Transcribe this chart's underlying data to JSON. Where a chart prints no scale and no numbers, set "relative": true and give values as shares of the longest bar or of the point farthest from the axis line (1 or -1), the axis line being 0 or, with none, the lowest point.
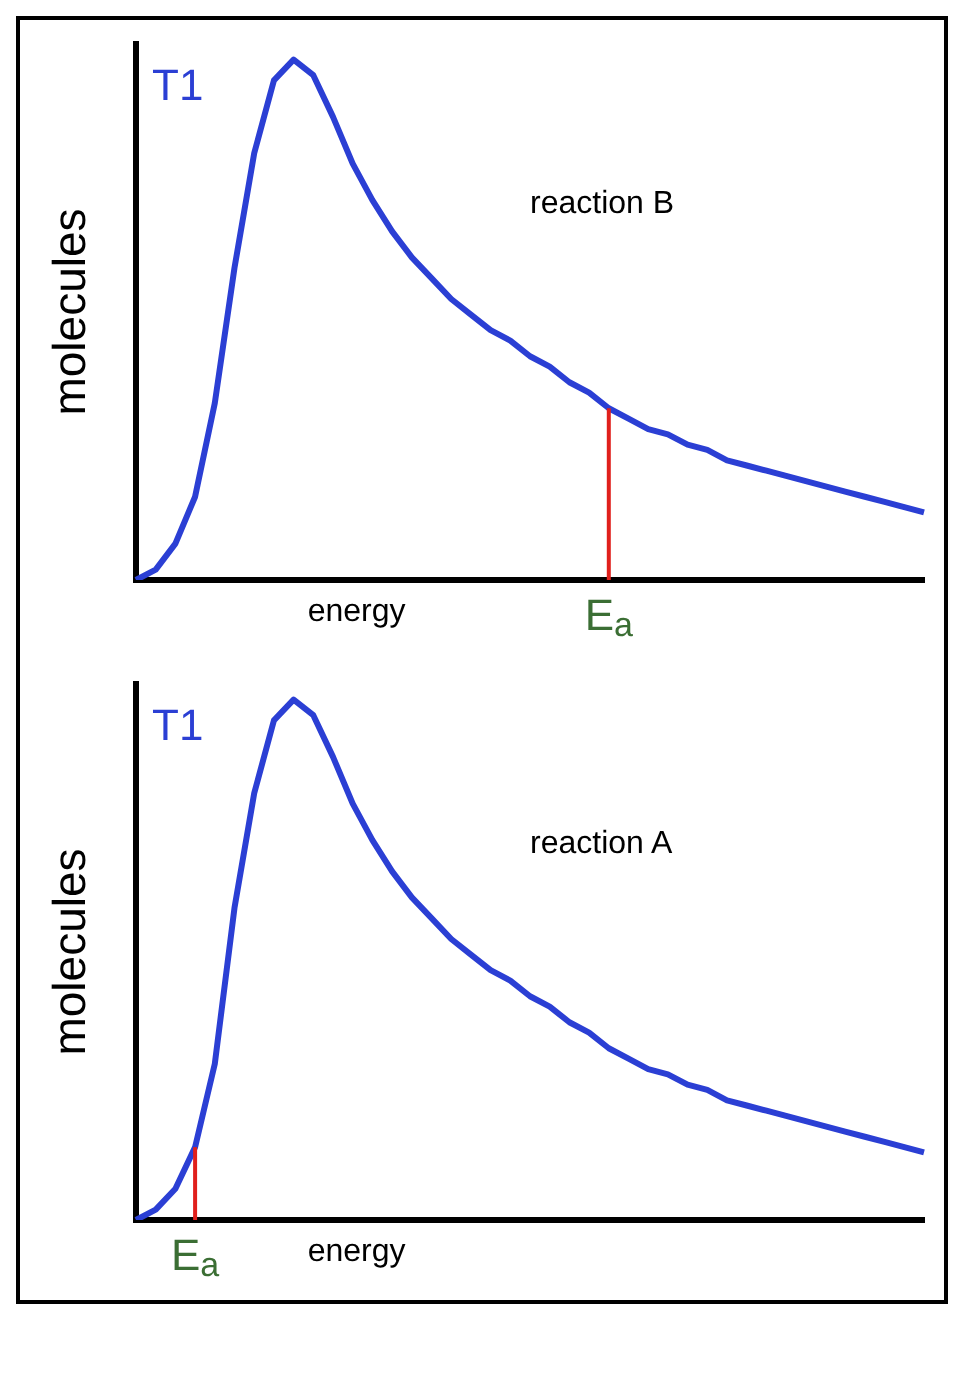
{
  "chart_data": [
    {
      "type": "line",
      "relative": true,
      "ylabel": "molecules",
      "xlabel": "energy",
      "annotations": [
        "T1",
        "reaction B",
        "E$_{a}$"
      ],
      "legend": false,
      "grid": false,
      "marker": "none",
      "categories": [
        null,
        null,
        null,
        null,
        null,
        null,
        null,
        null,
        null,
        null,
        null,
        null,
        null,
        null,
        null,
        null,
        null,
        null,
        null,
        null,
        null,
        null,
        null,
        null,
        null,
        null,
        null,
        null,
        null,
        null,
        null,
        null,
        null,
        null,
        null,
        null,
        null,
        null,
        null,
        null,
        null
      ],
      "series": [
        {
          "color": "#2b3fd4",
          "values": [
            0,
            0.02,
            0.07,
            0.16,
            0.34,
            0.6,
            0.82,
            0.96,
            1,
            0.97,
            0.89,
            0.8,
            0.73,
            0.67,
            0.62,
            0.58,
            0.54,
            0.51,
            0.48,
            0.46,
            0.43,
            0.41,
            0.38,
            0.36,
            0.33,
            0.31,
            0.29,
            0.28,
            0.26,
            0.25,
            0.23,
            0.22,
            0.21,
            0.2,
            0.19,
            0.18,
            0.17,
            0.16,
            0.15,
            0.14,
            0.13
          ]
        }
      ]
    },
    {
      "type": "line",
      "relative": true,
      "ylabel": "molecules",
      "xlabel": "energy",
      "annotations": [
        "T1",
        "reaction A",
        "E$_{a}$"
      ],
      "legend": false,
      "grid": false,
      "marker": "none",
      "categories": [
        null,
        null,
        null,
        null,
        null,
        null,
        null,
        null,
        null,
        null,
        null,
        null,
        null,
        null,
        null,
        null,
        null,
        null,
        null,
        null,
        null,
        null,
        null,
        null,
        null,
        null,
        null,
        null,
        null,
        null,
        null,
        null,
        null,
        null,
        null,
        null,
        null,
        null,
        null,
        null,
        null
      ],
      "series": [
        {
          "color": "#2b3fd4",
          "values": [
            0,
            0.02,
            0.06,
            0.14,
            0.3,
            0.6,
            0.82,
            0.96,
            1,
            0.97,
            0.89,
            0.8,
            0.73,
            0.67,
            0.62,
            0.58,
            0.54,
            0.51,
            0.48,
            0.46,
            0.43,
            0.41,
            0.38,
            0.36,
            0.33,
            0.31,
            0.29,
            0.28,
            0.26,
            0.25,
            0.23,
            0.22,
            0.21,
            0.2,
            0.19,
            0.18,
            0.17,
            0.16,
            0.15,
            0.14,
            0.13
          ]
        }
      ]
    }
  ]
}
